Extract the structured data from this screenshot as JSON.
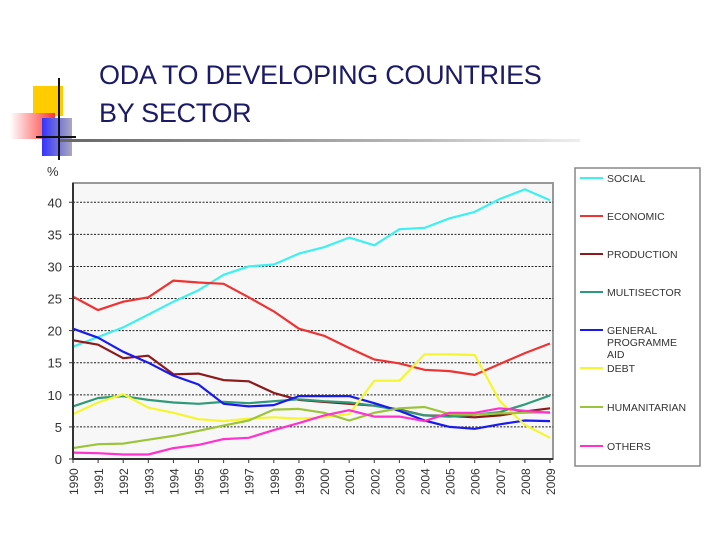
{
  "slide": {
    "title_line1": "ODA TO DEVELOPING COUNTRIES",
    "title_line2": "BY SECTOR"
  },
  "chart_data": {
    "type": "line",
    "title": "",
    "ylabel": "%",
    "xlabel": "",
    "ylim": [
      0,
      43
    ],
    "yticks": [
      0,
      5,
      10,
      15,
      20,
      25,
      30,
      35,
      40
    ],
    "grid": true,
    "legend": "right",
    "x": [
      "1990",
      "1991",
      "1992",
      "1993",
      "1994",
      "1995",
      "1996",
      "1997",
      "1998",
      "1999",
      "2000",
      "2001",
      "2002",
      "2003",
      "2004",
      "2005",
      "2006",
      "2007",
      "2008",
      "2009"
    ],
    "series": [
      {
        "name": "SOCIAL",
        "color": "#3ff0f0",
        "values": [
          17.5,
          19,
          20.5,
          22.5,
          24.5,
          26.3,
          28.7,
          30,
          30.3,
          32,
          33,
          34.5,
          33.3,
          35.8,
          36,
          37.5,
          38.5,
          40.5,
          42,
          40.3
        ]
      },
      {
        "name": "ECONOMIC",
        "color": "#ee3333",
        "values": [
          25.3,
          23.2,
          24.5,
          25.2,
          27.8,
          27.5,
          27.3,
          25.2,
          23,
          20.3,
          19.2,
          17.3,
          15.5,
          14.9,
          13.9,
          13.7,
          13.1,
          14.8,
          16.5,
          18
        ]
      },
      {
        "name": "PRODUCTION",
        "color": "#8b1a1a",
        "values": [
          18.5,
          17.8,
          15.7,
          16.1,
          13.2,
          13.3,
          12.3,
          12.1,
          10.3,
          9.2,
          8.9,
          8.6,
          8.3,
          7.7,
          6.8,
          6.7,
          6.5,
          6.8,
          7.4,
          7.9
        ]
      },
      {
        "name": "MULTISECTOR",
        "color": "#2f9a78",
        "values": [
          8.2,
          9.5,
          9.8,
          9.2,
          8.8,
          8.6,
          8.9,
          8.7,
          9.0,
          9.3,
          9.0,
          8.8,
          8.3,
          7.6,
          6.8,
          6.6,
          6.9,
          7.3,
          8.5,
          9.9
        ]
      },
      {
        "name": "GENERAL PROGRAMME AID",
        "color": "#1a1aee",
        "values": [
          20.3,
          18.9,
          16.7,
          15.0,
          13.0,
          11.6,
          8.6,
          8.2,
          8.4,
          9.8,
          9.8,
          9.8,
          8.7,
          7.5,
          6.0,
          5.0,
          4.7,
          5.4,
          6.0,
          5.9
        ]
      },
      {
        "name": "DEBT",
        "color": "#f5f530",
        "values": [
          7.0,
          8.8,
          10.1,
          8.0,
          7.2,
          6.2,
          5.9,
          6.3,
          6.5,
          6.3,
          6.5,
          7.0,
          12.2,
          12.2,
          16.3,
          16.3,
          16.2,
          9.0,
          5.3,
          3.3
        ]
      },
      {
        "name": "HUMANITARIAN",
        "color": "#9cc43a",
        "values": [
          1.7,
          2.3,
          2.4,
          3.0,
          3.6,
          4.4,
          5.2,
          6.0,
          7.7,
          7.8,
          7.2,
          6.0,
          7.2,
          7.9,
          8.1,
          7.0,
          6.9,
          7.1,
          7.2,
          7.3
        ]
      },
      {
        "name": "OTHERS",
        "color": "#ff33cc",
        "values": [
          1.0,
          0.9,
          0.7,
          0.7,
          1.7,
          2.2,
          3.1,
          3.3,
          4.5,
          5.6,
          6.8,
          7.6,
          6.6,
          6.6,
          5.9,
          7.2,
          7.2,
          7.9,
          7.5,
          7.2
        ]
      }
    ]
  }
}
